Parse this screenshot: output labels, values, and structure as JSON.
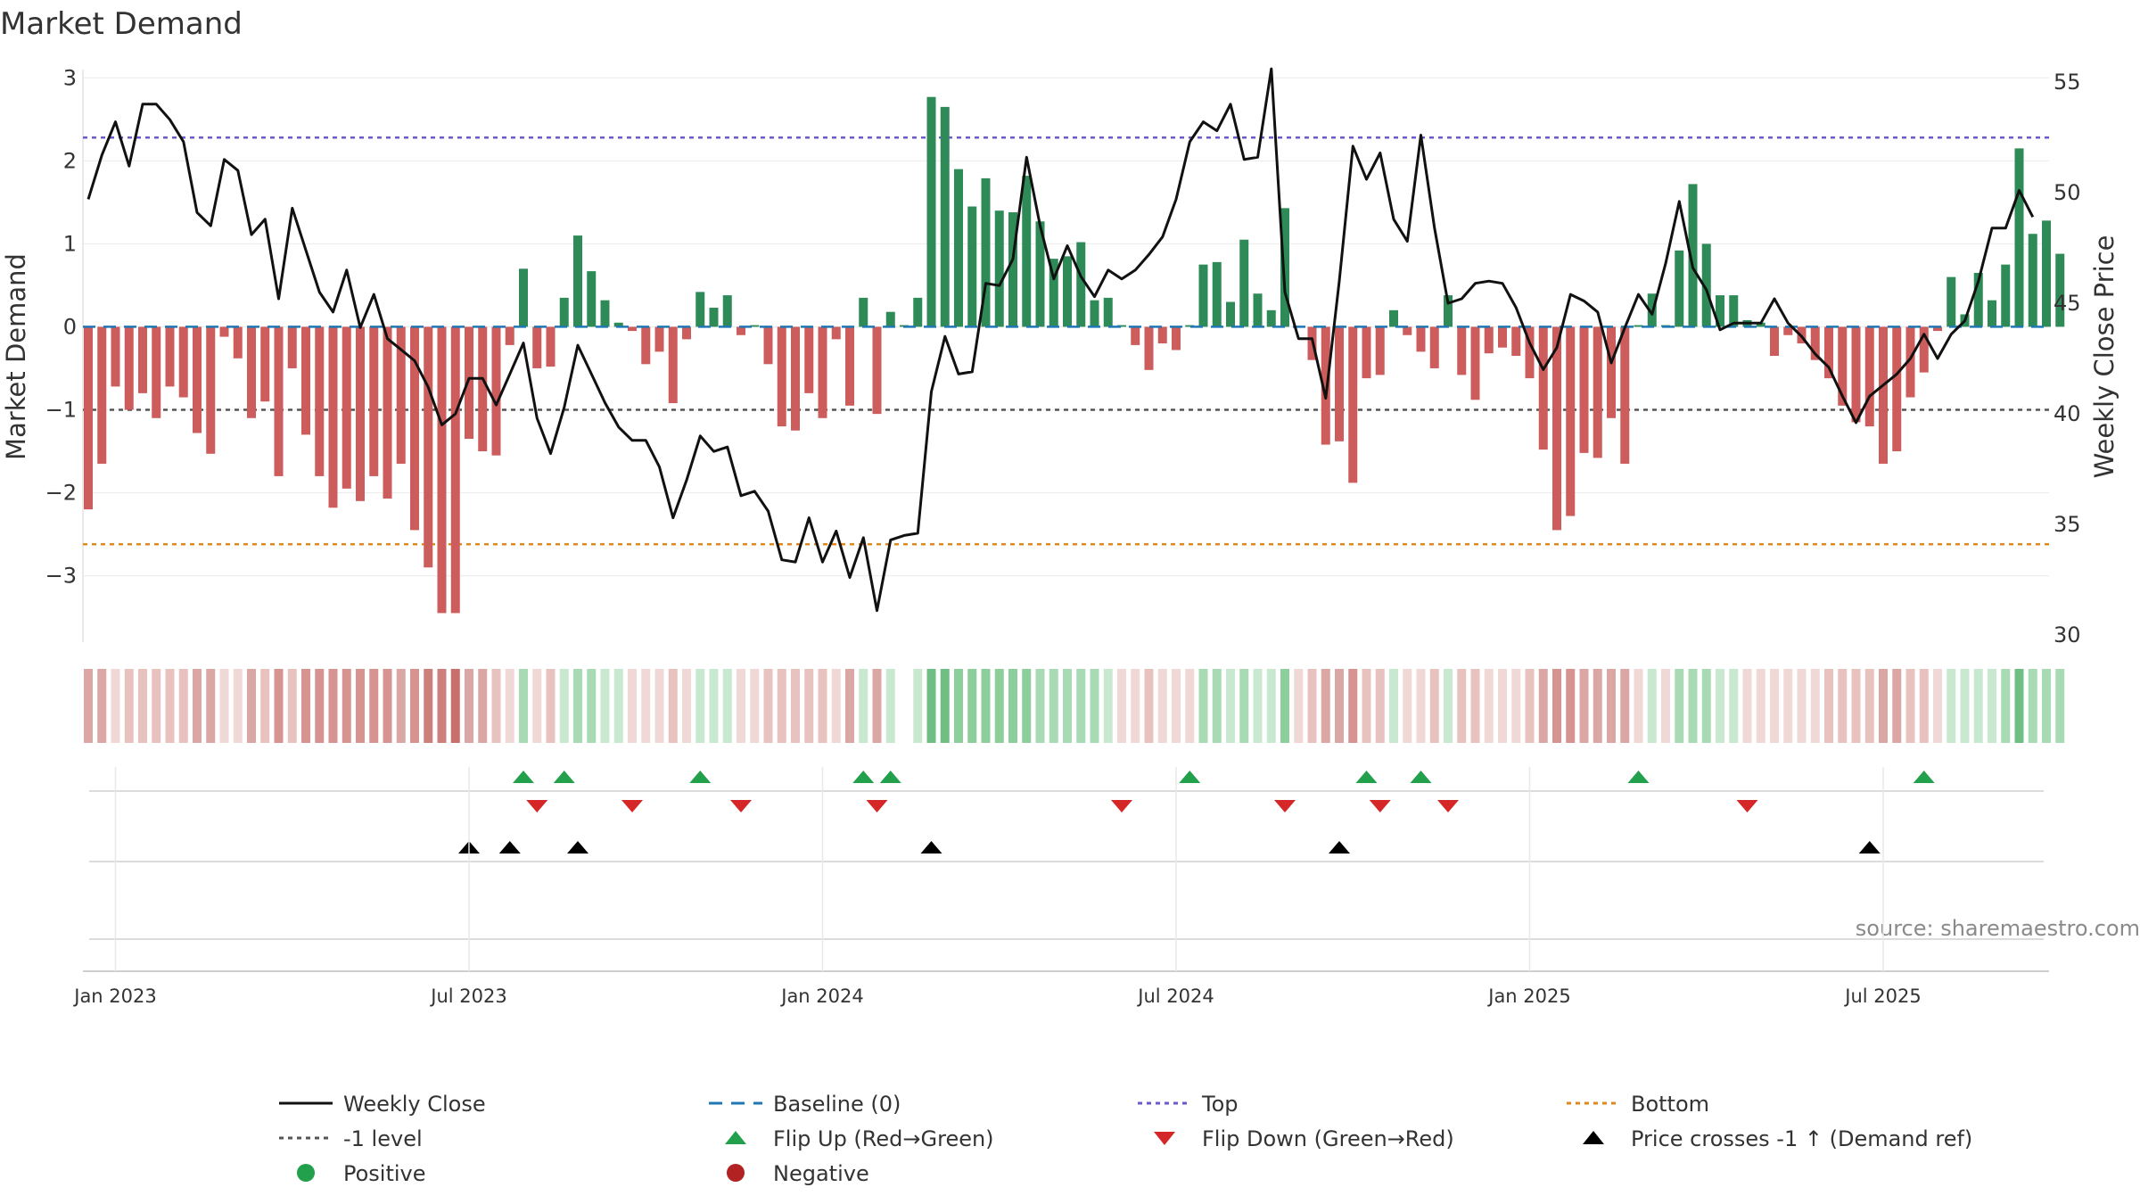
{
  "title": "Market Demand",
  "source": "source: sharemaestro.com",
  "colors": {
    "positive": "#2e8b57",
    "negative": "#cd5c5c",
    "price": "#111111",
    "baseline": "#1f77b4",
    "top": "#6a5acd",
    "bottom": "#e08a1e",
    "minus_one": "#555555",
    "flip_up": "#22a04b",
    "flip_down": "#d62728",
    "cross": "#000000"
  },
  "chart_data": {
    "type": "bar",
    "title": "Market Demand",
    "ylabel": "Market Demand",
    "y2label": "Weekly Close Price",
    "ylim": [
      -3.8,
      3.1
    ],
    "y2lim": [
      30,
      56
    ],
    "yticks": [
      "3",
      "2",
      "1",
      "0",
      "−1",
      "−2",
      "−3"
    ],
    "y2ticks": [
      "55",
      "50",
      "45",
      "40",
      "35",
      "30"
    ],
    "x_ticks": [
      "Jan 2023",
      "Jul 2023",
      "Jan 2024",
      "Jul 2024",
      "Jan 2025",
      "Jul 2025"
    ],
    "start_week_offset": -2,
    "x_tick_weeks": [
      0,
      26,
      52,
      78,
      104,
      130
    ],
    "reference_lines": {
      "top": 2.28,
      "bottom": -2.62,
      "minus_one": -1.0,
      "baseline": 0
    },
    "demand": [
      -2.2,
      -1.65,
      -0.72,
      -1.0,
      -0.8,
      -1.1,
      -0.72,
      -0.85,
      -1.28,
      -1.53,
      -0.12,
      -0.38,
      -1.1,
      -0.9,
      -1.8,
      -0.5,
      -1.3,
      -1.8,
      -2.18,
      -1.95,
      -2.1,
      -1.8,
      -2.07,
      -1.65,
      -2.45,
      -2.9,
      -3.45,
      -3.45,
      -1.35,
      -1.5,
      -1.55,
      -0.22,
      0.7,
      -0.5,
      -0.48,
      0.35,
      1.1,
      0.67,
      0.32,
      0.05,
      -0.05,
      -0.45,
      -0.3,
      -0.92,
      -0.15,
      0.42,
      0.23,
      0.38,
      -0.1,
      0.02,
      -0.45,
      -1.2,
      -1.25,
      -0.8,
      -1.1,
      -0.15,
      -0.95,
      0.35,
      -1.05,
      0.18,
      0.02,
      0.35,
      2.77,
      2.65,
      1.9,
      1.45,
      1.79,
      1.4,
      1.38,
      1.82,
      1.27,
      0.82,
      0.85,
      1.02,
      0.32,
      0.35,
      0.02,
      -0.22,
      -0.52,
      -0.2,
      -0.28,
      0.02,
      0.75,
      0.78,
      0.3,
      1.05,
      0.4,
      0.2,
      1.43,
      0.0,
      -0.4,
      -1.42,
      -1.38,
      -1.88,
      -0.62,
      -0.58,
      0.2,
      -0.1,
      -0.3,
      -0.5,
      0.38,
      -0.58,
      -0.88,
      -0.32,
      -0.25,
      -0.35,
      -0.62,
      -1.48,
      -2.45,
      -2.28,
      -1.52,
      -1.58,
      -1.1,
      -1.65,
      0.02,
      0.4,
      0.02,
      0.92,
      1.72,
      1.0,
      0.38,
      0.38,
      0.08,
      0.05,
      -0.35,
      -0.1,
      -0.2,
      -0.4,
      -0.62,
      -0.95,
      -1.15,
      -1.2,
      -1.65,
      -1.5,
      -0.85,
      -0.55,
      -0.05,
      0.6,
      0.15,
      0.65,
      0.32,
      0.75,
      2.15,
      1.12,
      1.28,
      0.88
    ],
    "weekly_close": [
      49.7,
      51.7,
      53.2,
      51.2,
      54.0,
      54.0,
      53.3,
      52.3,
      49.1,
      48.5,
      51.5,
      51.0,
      48.1,
      48.8,
      45.2,
      49.3,
      47.4,
      45.5,
      44.6,
      46.5,
      43.9,
      45.4,
      43.4,
      42.9,
      42.4,
      41.2,
      39.5,
      40.0,
      41.6,
      41.6,
      40.4,
      41.8,
      43.2,
      39.8,
      38.2,
      40.3,
      43.1,
      41.8,
      40.5,
      39.4,
      38.8,
      38.8,
      37.6,
      35.3,
      37.0,
      39.0,
      38.3,
      38.5,
      36.3,
      36.5,
      35.6,
      33.4,
      33.3,
      35.3,
      33.3,
      34.7,
      32.6,
      34.4,
      31.1,
      34.3,
      34.5,
      34.6,
      41.0,
      43.5,
      41.8,
      41.9,
      45.9,
      45.8,
      47.0,
      51.6,
      48.5,
      46.1,
      47.6,
      46.2,
      45.3,
      46.5,
      46.1,
      46.5,
      47.2,
      48.0,
      49.7,
      52.3,
      53.2,
      52.8,
      54.0,
      51.5,
      51.6,
      55.6,
      45.5,
      43.4,
      43.4,
      40.7,
      46.0,
      52.1,
      50.6,
      51.8,
      48.8,
      47.8,
      52.6,
      48.4,
      45.0,
      45.2,
      45.9,
      46.0,
      45.9,
      44.8,
      43.2,
      42.0,
      43.0,
      45.4,
      45.1,
      44.6,
      42.3,
      43.9,
      45.4,
      44.5,
      46.8,
      49.6,
      46.6,
      45.6,
      43.8,
      44.1,
      44.1,
      44.1,
      45.2,
      44.1,
      43.5,
      42.7,
      42.1,
      40.8,
      39.6,
      40.8,
      41.3,
      41.8,
      42.5,
      43.6,
      42.5,
      43.6,
      44.2,
      46.0,
      48.4,
      48.4,
      50.1,
      48.9
    ],
    "strip_colors": [
      "#dba7a4",
      "#dba7a4",
      "#f0d8d6",
      "#e8c2bf",
      "#e8c2bf",
      "#e8c2bf",
      "#e8c2bf",
      "#e8c2bf",
      "#dba7a4",
      "#dba7a4",
      "#f0d8d6",
      "#f0d8d6",
      "#dba7a4",
      "#e8c2bf",
      "#d69390",
      "#e8c2bf",
      "#d69390",
      "#d69390",
      "#d69390",
      "#d69390",
      "#d69390",
      "#d69390",
      "#d69390",
      "#dba7a4",
      "#d69390",
      "#cd7f7c",
      "#cd7f7c",
      "#c76f6b",
      "#dba7a4",
      "#dba7a4",
      "#e8c2bf",
      "#f0d8d6",
      "#a8dbb4",
      "#f0d8d6",
      "#e8c2bf",
      "#c9e8d0",
      "#a8dbb4",
      "#a8dbb4",
      "#c9e8d0",
      "#c9e8d0",
      "#f0d8d6",
      "#f0d8d6",
      "#f0d8d6",
      "#e8c2bf",
      "#f0d8d6",
      "#c9e8d0",
      "#c9e8d0",
      "#c9e8d0",
      "#f0d8d6",
      "#f0d8d6",
      "#e8c2bf",
      "#e8c2bf",
      "#e8c2bf",
      "#e8c2bf",
      "#e8c2bf",
      "#f0d8d6",
      "#dba7a4",
      "#c9e8d0",
      "#dba7a4",
      "#c9e8d0",
      "#ffffff",
      "#c9e8d0",
      "#6fbf84",
      "#6fbf84",
      "#8ccf9c",
      "#8ccf9c",
      "#8ccf9c",
      "#8ccf9c",
      "#8ccf9c",
      "#8ccf9c",
      "#a8dbb4",
      "#a8dbb4",
      "#a8dbb4",
      "#a8dbb4",
      "#a8dbb4",
      "#c9e8d0",
      "#f0d8d6",
      "#f0d8d6",
      "#e8c2bf",
      "#f0d8d6",
      "#f0d8d6",
      "#f0d8d6",
      "#a8dbb4",
      "#a8dbb4",
      "#c9e8d0",
      "#a8dbb4",
      "#c9e8d0",
      "#c9e8d0",
      "#8ccf9c",
      "#f0d8d6",
      "#e8c2bf",
      "#dba7a4",
      "#dba7a4",
      "#d69390",
      "#e8c2bf",
      "#e8c2bf",
      "#c9e8d0",
      "#f0d8d6",
      "#f0d8d6",
      "#e8c2bf",
      "#c9e8d0",
      "#e8c2bf",
      "#e8c2bf",
      "#f0d8d6",
      "#f0d8d6",
      "#f0d8d6",
      "#e8c2bf",
      "#dba7a4",
      "#d69390",
      "#d69390",
      "#dba7a4",
      "#dba7a4",
      "#dba7a4",
      "#dba7a4",
      "#f0d8d6",
      "#c9e8d0",
      "#f0d8d6",
      "#a8dbb4",
      "#a8dbb4",
      "#a8dbb4",
      "#c9e8d0",
      "#c9e8d0",
      "#f0d8d6",
      "#f0d8d6",
      "#f0d8d6",
      "#f0d8d6",
      "#f0d8d6",
      "#f0d8d6",
      "#e8c2bf",
      "#e8c2bf",
      "#e8c2bf",
      "#e8c2bf",
      "#dba7a4",
      "#dba7a4",
      "#e8c2bf",
      "#e8c2bf",
      "#f0d8d6",
      "#c9e8d0",
      "#c9e8d0",
      "#c9e8d0",
      "#c9e8d0",
      "#a8dbb4",
      "#6fbf84",
      "#a8dbb4",
      "#a8dbb4",
      "#a8dbb4"
    ],
    "flip_up_weeks": [
      32,
      35,
      45,
      57,
      59,
      81,
      94,
      98,
      114,
      135
    ],
    "flip_down_weeks": [
      33,
      40,
      48,
      58,
      76,
      88,
      95,
      100,
      122
    ],
    "cross_weeks": [
      28,
      31,
      36,
      62,
      92,
      131
    ],
    "legend": [
      {
        "label": "Weekly Close",
        "marker": "solid-line"
      },
      {
        "label": "Baseline (0)",
        "marker": "dash-line"
      },
      {
        "label": "Top",
        "marker": "dot-line-top"
      },
      {
        "label": "Bottom",
        "marker": "dot-line-bottom"
      },
      {
        "label": "-1 level",
        "marker": "dot-line-gray"
      },
      {
        "label": "Flip Up (Red→Green)",
        "marker": "triangle-up-green"
      },
      {
        "label": "Flip Down (Green→Red)",
        "marker": "triangle-down-red"
      },
      {
        "label": "Price crosses -1 ↑ (Demand ref)",
        "marker": "triangle-up-black"
      },
      {
        "label": "Positive",
        "marker": "dot-green"
      },
      {
        "label": "Negative",
        "marker": "dot-red"
      }
    ]
  }
}
